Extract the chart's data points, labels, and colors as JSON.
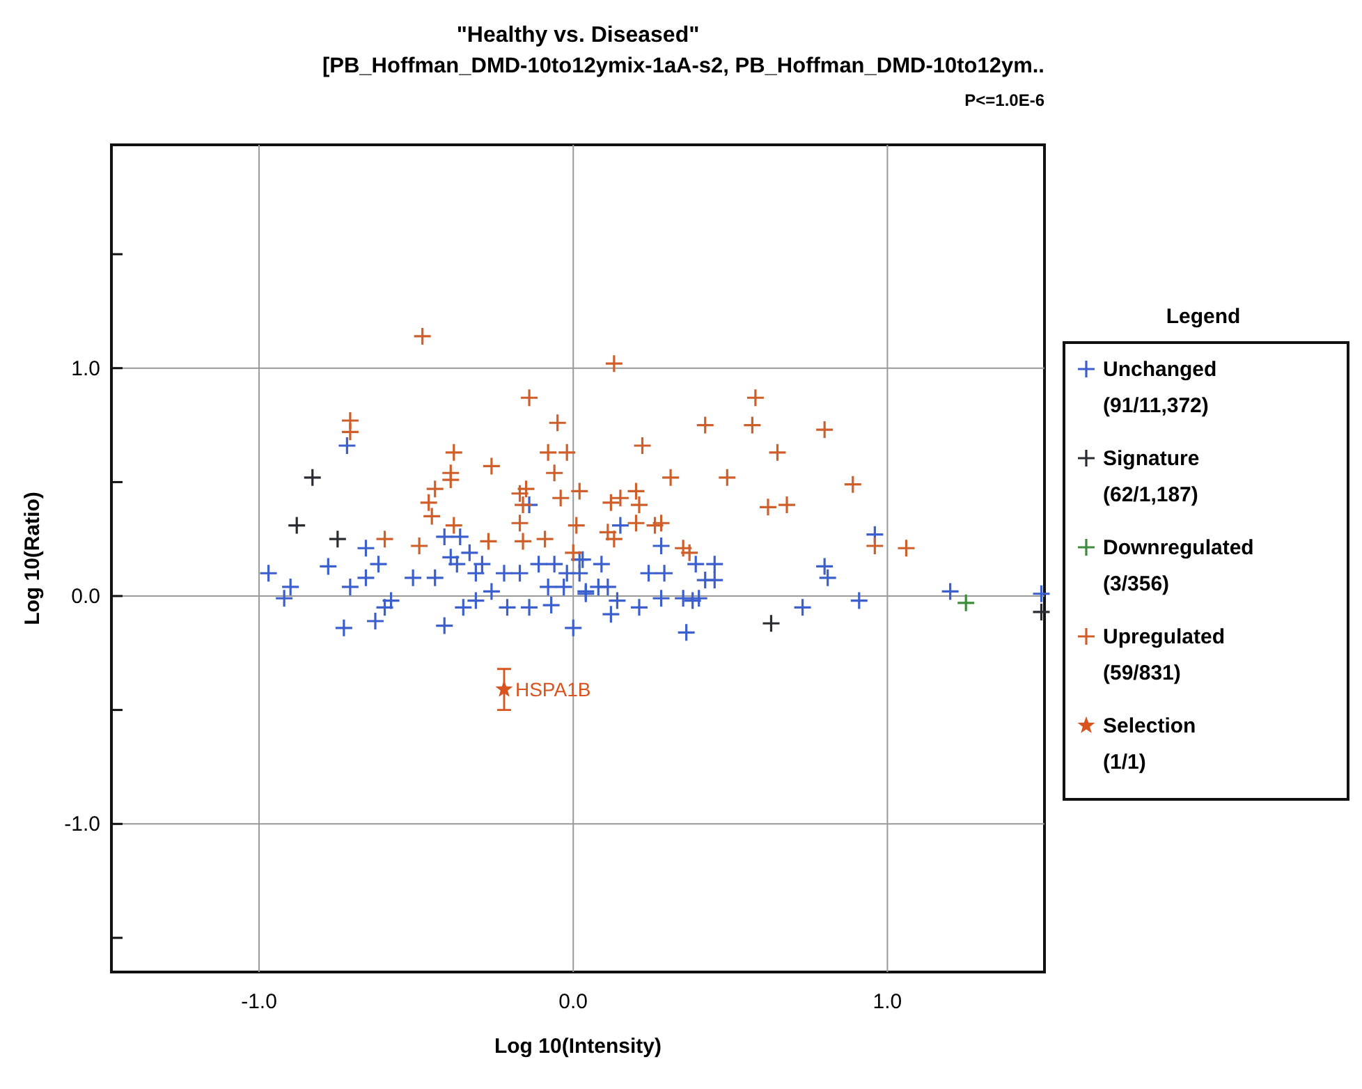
{
  "chart_data": {
    "type": "scatter",
    "title": "\"Healthy vs. Diseased\"",
    "subtitle": "[PB_Hoffman_DMD-10to12ymix-1aA-s2, PB_Hoffman_DMD-10to12ym..",
    "xlabel": "Log 10(Intensity)",
    "ylabel": "Log 10(Ratio)",
    "legend_title": "Legend",
    "legend": "right",
    "grid": true,
    "marker": "cross",
    "xlim": [
      -1.47,
      1.5
    ],
    "ylim": [
      -1.65,
      1.98
    ],
    "xticks": [
      {
        "value": -1,
        "label": "-1.0"
      },
      {
        "value": 0,
        "label": "0.0"
      },
      {
        "value": 1,
        "label": "1.0"
      }
    ],
    "yticks": [
      {
        "value": -1.5,
        "label": null
      },
      {
        "value": -1,
        "label": "-1.0"
      },
      {
        "value": -0.5,
        "label": null
      },
      {
        "value": 0,
        "label": "0.0"
      },
      {
        "value": 0.5,
        "label": null
      },
      {
        "value": 1,
        "label": "1.0"
      },
      {
        "value": 1.5,
        "label": null
      }
    ],
    "annotations": [
      "P<=1.0E-6",
      {
        "text": "HSPA1B",
        "x": -0.22,
        "y": -0.41
      }
    ],
    "series": [
      {
        "name": "Unchanged (91/11,372)",
        "color": "#3b5fcc",
        "x": [
          -0.72,
          -0.14,
          -0.41,
          -0.36,
          -0.66,
          -0.62,
          -0.78,
          -0.97,
          -0.51,
          -0.44,
          -0.66,
          -0.71,
          -0.9,
          -0.92,
          -0.58,
          -0.6,
          -0.63,
          -0.73,
          -0.41,
          -0.35,
          -0.31,
          -0.39,
          -0.37,
          -0.33,
          -0.29,
          -0.31,
          -0.26,
          -0.22,
          -0.17,
          -0.21,
          -0.14,
          -0.11,
          -0.06,
          -0.08,
          -0.03,
          -0.07,
          -0.02,
          0.03,
          0.04,
          0.0,
          0.02,
          0.02,
          0.09,
          0.08,
          0.11,
          0.04,
          0.14,
          0.12,
          0.15,
          0.21,
          0.28,
          0.24,
          0.29,
          0.28,
          0.35,
          0.38,
          0.4,
          0.39,
          0.45,
          0.42,
          0.45,
          0.36,
          0.73,
          0.8,
          0.81,
          0.91,
          0.96,
          1.2,
          1.49
        ],
        "values": [
          0.66,
          0.4,
          0.26,
          0.26,
          0.21,
          0.14,
          0.13,
          0.1,
          0.08,
          0.08,
          0.08,
          0.04,
          0.04,
          -0.01,
          -0.02,
          -0.05,
          -0.11,
          -0.14,
          -0.13,
          -0.05,
          -0.02,
          0.17,
          0.14,
          0.19,
          0.14,
          0.1,
          0.02,
          0.1,
          0.1,
          -0.05,
          -0.05,
          0.14,
          0.14,
          0.04,
          0.04,
          -0.04,
          0.1,
          0.16,
          0.02,
          -0.14,
          0.16,
          0.1,
          0.14,
          0.04,
          0.04,
          0.01,
          -0.02,
          -0.08,
          0.31,
          -0.05,
          0.22,
          0.1,
          0.1,
          -0.01,
          -0.01,
          -0.02,
          -0.01,
          0.14,
          0.14,
          0.07,
          0.07,
          -0.16,
          -0.05,
          0.13,
          0.08,
          -0.02,
          0.27,
          0.02,
          0.01
        ]
      },
      {
        "name": "Signature (62/1,187)",
        "color": "#2b2b33",
        "x": [
          -0.83,
          -0.88,
          -0.75,
          0.63,
          1.49
        ],
        "values": [
          0.52,
          0.31,
          0.25,
          -0.12,
          -0.07
        ]
      },
      {
        "name": "Downregulated (3/356)",
        "color": "#3c8c3c",
        "x": [
          1.25
        ],
        "values": [
          -0.03
        ]
      },
      {
        "name": "Upregulated (59/831)",
        "color": "#cf5f2a",
        "x": [
          -0.48,
          -0.71,
          -0.71,
          -0.14,
          -0.05,
          -0.38,
          -0.26,
          -0.08,
          -0.02,
          -0.39,
          -0.39,
          -0.06,
          -0.44,
          -0.15,
          -0.17,
          -0.04,
          0.02,
          -0.46,
          -0.45,
          -0.16,
          0.01,
          -0.38,
          -0.6,
          -0.49,
          -0.27,
          -0.16,
          -0.09,
          0.0,
          -0.17,
          0.13,
          0.58,
          0.42,
          0.57,
          0.8,
          0.22,
          0.65,
          0.31,
          0.49,
          0.89,
          0.2,
          0.15,
          0.12,
          0.21,
          0.62,
          0.68,
          0.2,
          0.26,
          0.28,
          0.11,
          0.13,
          0.35,
          0.37,
          0.96,
          1.06
        ],
        "values": [
          1.14,
          0.77,
          0.72,
          0.87,
          0.76,
          0.63,
          0.57,
          0.63,
          0.63,
          0.54,
          0.51,
          0.54,
          0.47,
          0.47,
          0.45,
          0.43,
          0.46,
          0.41,
          0.35,
          0.4,
          0.31,
          0.31,
          0.25,
          0.22,
          0.24,
          0.24,
          0.25,
          0.19,
          0.32,
          1.02,
          0.87,
          0.75,
          0.75,
          0.73,
          0.66,
          0.63,
          0.52,
          0.52,
          0.49,
          0.46,
          0.43,
          0.41,
          0.4,
          0.39,
          0.4,
          0.32,
          0.31,
          0.32,
          0.28,
          0.25,
          0.21,
          0.19,
          0.22,
          0.21
        ]
      },
      {
        "name": "Selection (1/1)",
        "color": "#d9531e",
        "marker": "star",
        "x": [
          -0.22
        ],
        "values": [
          -0.41
        ],
        "errors": [
          [
            -0.5,
            -0.32
          ]
        ]
      }
    ]
  }
}
